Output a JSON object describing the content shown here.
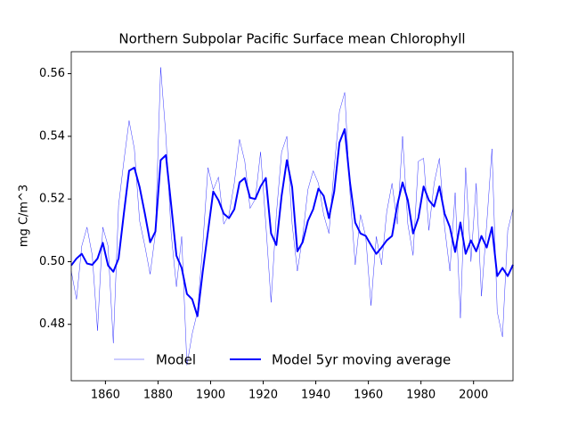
{
  "chart_data": {
    "type": "line",
    "title": "Northern Subpolar Pacific Surface mean Chlorophyll",
    "y_label": "mg C/m^3",
    "x": [
      1847,
      1849,
      1851,
      1853,
      1855,
      1857,
      1859,
      1861,
      1863,
      1865,
      1867,
      1869,
      1871,
      1873,
      1875,
      1877,
      1879,
      1881,
      1883,
      1885,
      1887,
      1889,
      1891,
      1893,
      1895,
      1897,
      1899,
      1901,
      1903,
      1905,
      1907,
      1909,
      1911,
      1913,
      1915,
      1917,
      1919,
      1921,
      1923,
      1925,
      1927,
      1929,
      1931,
      1933,
      1935,
      1937,
      1939,
      1941,
      1943,
      1945,
      1947,
      1949,
      1951,
      1953,
      1955,
      1957,
      1959,
      1961,
      1963,
      1965,
      1967,
      1969,
      1971,
      1973,
      1975,
      1977,
      1979,
      1981,
      1983,
      1985,
      1987,
      1989,
      1991,
      1993,
      1995,
      1997,
      1999,
      2001,
      2003,
      2005,
      2007,
      2009,
      2011,
      2013,
      2015
    ],
    "series": [
      {
        "name": "Model",
        "color": "#0000ff",
        "width": 0.4,
        "values": [
          0.497,
          0.488,
          0.505,
          0.511,
          0.502,
          0.478,
          0.511,
          0.505,
          0.474,
          0.518,
          0.532,
          0.545,
          0.536,
          0.513,
          0.505,
          0.496,
          0.509,
          0.562,
          0.54,
          0.509,
          0.492,
          0.508,
          0.467,
          0.477,
          0.484,
          0.505,
          0.53,
          0.523,
          0.527,
          0.512,
          0.515,
          0.525,
          0.539,
          0.532,
          0.517,
          0.52,
          0.535,
          0.512,
          0.487,
          0.515,
          0.535,
          0.54,
          0.512,
          0.497,
          0.508,
          0.523,
          0.529,
          0.525,
          0.515,
          0.509,
          0.53,
          0.548,
          0.554,
          0.522,
          0.499,
          0.515,
          0.508,
          0.486,
          0.508,
          0.499,
          0.516,
          0.525,
          0.512,
          0.54,
          0.512,
          0.502,
          0.532,
          0.533,
          0.51,
          0.525,
          0.533,
          0.511,
          0.497,
          0.522,
          0.482,
          0.53,
          0.5,
          0.525,
          0.489,
          0.512,
          0.536,
          0.484,
          0.476,
          0.51,
          0.517
        ]
      },
      {
        "name": "Model 5yr moving average",
        "color": "#0000ff",
        "width": 2,
        "values": [
          0.4988,
          0.501,
          0.5025,
          0.4994,
          0.499,
          0.501,
          0.506,
          0.4988,
          0.4968,
          0.501,
          0.5153,
          0.529,
          0.53,
          0.5238,
          0.5153,
          0.5062,
          0.5096,
          0.5324,
          0.534,
          0.5181,
          0.5019,
          0.498,
          0.4897,
          0.488,
          0.4826,
          0.4968,
          0.5096,
          0.5224,
          0.5196,
          0.5153,
          0.5139,
          0.5167,
          0.5253,
          0.5267,
          0.5204,
          0.52,
          0.524,
          0.5267,
          0.509,
          0.5053,
          0.521,
          0.5324,
          0.5238,
          0.5033,
          0.5062,
          0.513,
          0.5167,
          0.5233,
          0.521,
          0.5139,
          0.5224,
          0.538,
          0.5423,
          0.5253,
          0.5125,
          0.509,
          0.5082,
          0.5053,
          0.5025,
          0.5045,
          0.5068,
          0.5082,
          0.5181,
          0.5253,
          0.5196,
          0.509,
          0.5139,
          0.524,
          0.5196,
          0.5176,
          0.524,
          0.5153,
          0.511,
          0.5031,
          0.5125,
          0.5025,
          0.5068,
          0.5033,
          0.5082,
          0.5045,
          0.511,
          0.4954,
          0.498,
          0.4954,
          0.499
        ]
      }
    ],
    "xlim": [
      1847,
      2015
    ],
    "ylim": [
      0.462,
      0.567
    ],
    "xticks": [
      1860,
      1880,
      1900,
      1920,
      1940,
      1960,
      1980,
      2000
    ],
    "yticks": [
      0.48,
      {
        "value": 0.5,
        "label": "0.50"
      },
      0.52,
      0.54,
      0.56
    ],
    "legend": "lower center"
  }
}
